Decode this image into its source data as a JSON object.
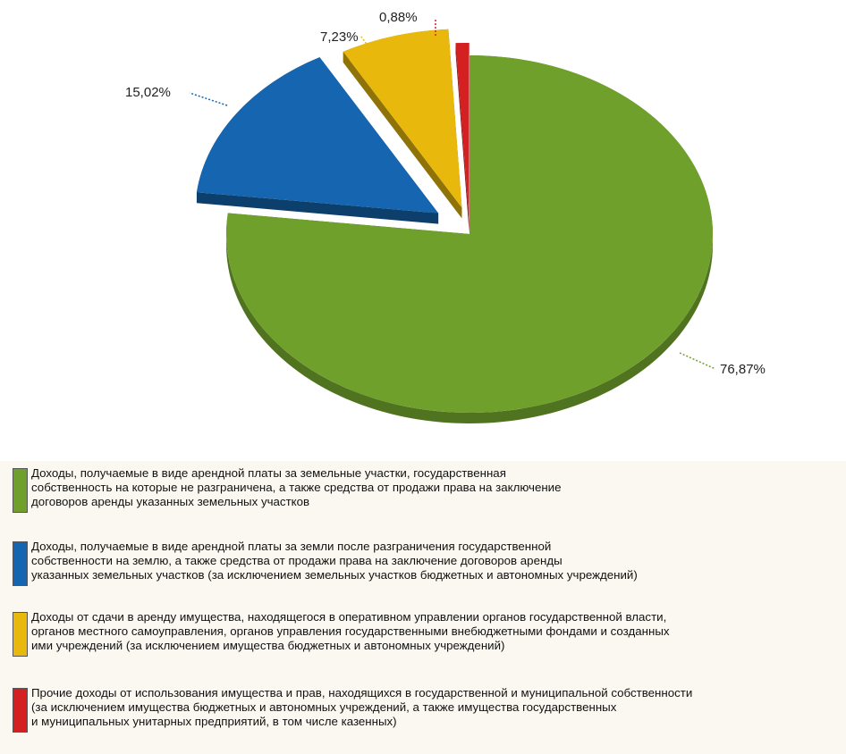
{
  "chart_data": {
    "type": "pie",
    "style": "3d-exploded",
    "slices": [
      {
        "value": 76.87,
        "label": "76,87%",
        "color": "#6fa02c",
        "legend": "Доходы, получаемые в виде арендной платы за земельные участки, государственная\nсобственность на которые не разграничена, а также средства от продажи права на заключение\nдоговоров аренды указанных земельных участков"
      },
      {
        "value": 15.02,
        "label": "15,02%",
        "color": "#1565b0",
        "legend": "Доходы, получаемые в виде арендной платы за земли после разграничения государственной\nсобственности на землю, а также средства от продажи права на заключение договоров аренды\nуказанных земельных участков (за исключением земельных участков бюджетных и автономных учреждений)"
      },
      {
        "value": 7.23,
        "label": "7,23%",
        "color": "#e8b90c",
        "legend": "Доходы от сдачи в аренду имущества, находящегося в оперативном управлении органов государственной власти,\nорганов местного самоуправления, органов управления государственными внебюджетными фондами и созданных\nими учреждений (за исключением имущества бюджетных и автономных учреждений)"
      },
      {
        "value": 0.88,
        "label": "0,88%",
        "color": "#d42020",
        "legend": "Прочие доходы от использования имущества и прав, находящихся в государственной и муниципальной собственности\n(за исключением имущества бюджетных и автономных учреждений, а также имущества государственных\nи муниципальных унитарных предприятий, в том числе казенных)"
      }
    ],
    "legend_position": "bottom"
  }
}
